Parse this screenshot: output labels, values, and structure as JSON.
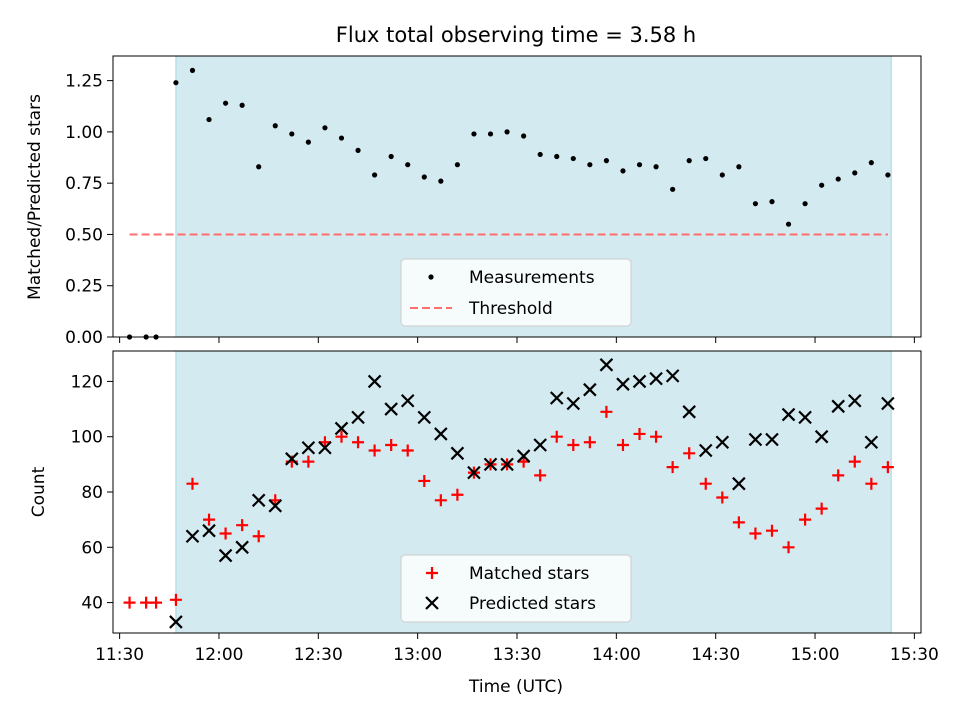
{
  "colors": {
    "observing_window": "#d3eaf0",
    "observing_window_edge": "#a8d4e0",
    "measurement": "#000000",
    "threshold": "#ff6e6e",
    "matched": "#ff0000",
    "predicted": "#000000"
  },
  "chart_data": [
    {
      "type": "scatter",
      "title": "Flux total observing time = 3.58 h",
      "xlabel": "",
      "ylabel": "Matched/Predicted stars",
      "ylim": [
        0,
        1.37
      ],
      "yticks": [
        0,
        0.25,
        0.5,
        0.75,
        1.0,
        1.25
      ],
      "ytick_labels": [
        "0.00",
        "0.25",
        "0.50",
        "0.75",
        "1.00",
        "1.25"
      ],
      "xlim": [
        "11:28",
        "15:32"
      ],
      "shaded_span": [
        "11:47",
        "15:23"
      ],
      "grid": false,
      "legend_position": "lower center",
      "x": [
        "11:33",
        "11:38",
        "11:41",
        "11:47",
        "11:52",
        "11:57",
        "12:02",
        "12:07",
        "12:12",
        "12:17",
        "12:22",
        "12:27",
        "12:32",
        "12:37",
        "12:42",
        "12:47",
        "12:52",
        "12:57",
        "13:02",
        "13:07",
        "13:12",
        "13:17",
        "13:22",
        "13:27",
        "13:32",
        "13:37",
        "13:42",
        "13:47",
        "13:52",
        "13:57",
        "14:02",
        "14:07",
        "14:12",
        "14:17",
        "14:22",
        "14:27",
        "14:32",
        "14:37",
        "14:42",
        "14:47",
        "14:52",
        "14:57",
        "15:02",
        "15:07",
        "15:12",
        "15:17",
        "15:22"
      ],
      "series": [
        {
          "name": "Measurements",
          "kind": "points",
          "values": [
            0.0,
            0.0,
            0.0,
            1.24,
            1.3,
            1.06,
            1.14,
            1.13,
            0.83,
            1.03,
            0.99,
            0.95,
            1.02,
            0.97,
            0.91,
            0.79,
            0.88,
            0.84,
            0.78,
            0.76,
            0.84,
            0.99,
            0.99,
            1.0,
            0.98,
            0.89,
            0.88,
            0.87,
            0.84,
            0.86,
            0.81,
            0.84,
            0.83,
            0.72,
            0.86,
            0.87,
            0.79,
            0.83,
            0.65,
            0.66,
            0.55,
            0.65,
            0.74,
            0.77,
            0.8,
            0.85,
            0.79
          ]
        },
        {
          "name": "Threshold",
          "kind": "dashed-line",
          "x": [
            "11:33",
            "15:22"
          ],
          "values": [
            0.5,
            0.5
          ]
        }
      ]
    },
    {
      "type": "scatter",
      "title": "",
      "xlabel": "Time (UTC)",
      "ylabel": "Count",
      "ylim": [
        29,
        131
      ],
      "yticks": [
        40,
        60,
        80,
        100,
        120
      ],
      "xlim": [
        "11:28",
        "15:32"
      ],
      "xtick_labels": [
        "11:30",
        "12:00",
        "12:30",
        "13:00",
        "13:30",
        "14:00",
        "14:30",
        "15:00",
        "15:30"
      ],
      "shaded_span": [
        "11:47",
        "15:23"
      ],
      "grid": false,
      "legend_position": "lower center",
      "x": [
        "11:33",
        "11:38",
        "11:41",
        "11:47",
        "11:52",
        "11:57",
        "12:02",
        "12:07",
        "12:12",
        "12:17",
        "12:22",
        "12:27",
        "12:32",
        "12:37",
        "12:42",
        "12:47",
        "12:52",
        "12:57",
        "13:02",
        "13:07",
        "13:12",
        "13:17",
        "13:22",
        "13:27",
        "13:32",
        "13:37",
        "13:42",
        "13:47",
        "13:52",
        "13:57",
        "14:02",
        "14:07",
        "14:12",
        "14:17",
        "14:22",
        "14:27",
        "14:32",
        "14:37",
        "14:42",
        "14:47",
        "14:52",
        "14:57",
        "15:02",
        "15:07",
        "15:12",
        "15:17",
        "15:22"
      ],
      "series": [
        {
          "name": "Matched stars",
          "kind": "plus",
          "values": [
            40,
            40,
            40,
            41,
            83,
            70,
            65,
            68,
            64,
            77,
            91,
            91,
            98,
            100,
            98,
            95,
            97,
            95,
            84,
            77,
            79,
            87,
            90,
            90,
            91,
            86,
            100,
            97,
            98,
            109,
            97,
            101,
            100,
            89,
            94,
            83,
            78,
            69,
            65,
            66,
            60,
            70,
            74,
            86,
            91,
            83,
            89
          ]
        },
        {
          "name": "Predicted stars",
          "kind": "x",
          "values": [
            null,
            null,
            null,
            33,
            64,
            66,
            57,
            60,
            77,
            75,
            92,
            96,
            96,
            103,
            107,
            120,
            110,
            113,
            107,
            101,
            94,
            87,
            90,
            90,
            93,
            97,
            114,
            112,
            117,
            126,
            119,
            120,
            121,
            122,
            109,
            95,
            98,
            83,
            99,
            99,
            108,
            107,
            100,
            111,
            113,
            98,
            112
          ]
        }
      ]
    }
  ]
}
